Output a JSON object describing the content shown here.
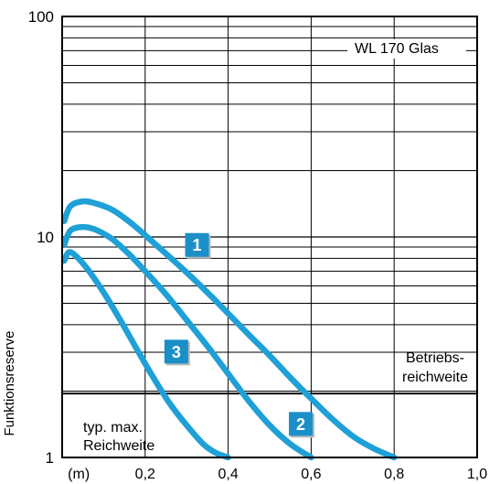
{
  "chart_data": {
    "type": "line",
    "title": "WL 170 Glas",
    "ylabel": "Funktionsreserve",
    "x_unit_label": "(m)",
    "x_tick_labels": [
      "0,2",
      "0,4",
      "0,6",
      "0,8",
      "1,0"
    ],
    "x_ticks": [
      0.2,
      0.4,
      0.6,
      0.8,
      1.0
    ],
    "y_tick_labels": [
      "1",
      "10",
      "100"
    ],
    "y_ticks": [
      1,
      10,
      100
    ],
    "xlim": [
      0,
      1.0
    ],
    "ylim": [
      1,
      100
    ],
    "y_scale": "log",
    "grid": true,
    "reference_line": {
      "y": 1.95,
      "label": "Betriebs-\nreichweite"
    },
    "annotation_bottom": "typ. max.\nReichweite",
    "series_color": "#1fa0d6",
    "badge_color": "#1b8fc7",
    "series": [
      {
        "name": "1",
        "x": [
          0.005,
          0.02,
          0.05,
          0.08,
          0.12,
          0.16,
          0.2,
          0.25,
          0.3,
          0.35,
          0.4,
          0.45,
          0.5,
          0.55,
          0.6,
          0.65,
          0.7,
          0.75,
          0.8
        ],
        "y": [
          11.8,
          13.8,
          14.5,
          14.2,
          13.3,
          11.8,
          10.2,
          8.4,
          6.9,
          5.6,
          4.5,
          3.6,
          2.9,
          2.3,
          1.85,
          1.5,
          1.25,
          1.1,
          1.0
        ]
      },
      {
        "name": "2",
        "x": [
          0.005,
          0.02,
          0.05,
          0.08,
          0.12,
          0.16,
          0.2,
          0.25,
          0.3,
          0.35,
          0.4,
          0.45,
          0.5,
          0.55,
          0.6
        ],
        "y": [
          9.2,
          10.7,
          11.1,
          10.8,
          9.8,
          8.4,
          7.0,
          5.5,
          4.2,
          3.2,
          2.4,
          1.8,
          1.4,
          1.15,
          1.0
        ]
      },
      {
        "name": "3",
        "x": [
          0.005,
          0.015,
          0.03,
          0.06,
          0.1,
          0.14,
          0.18,
          0.22,
          0.26,
          0.3,
          0.34,
          0.37,
          0.4
        ],
        "y": [
          7.8,
          8.5,
          8.3,
          7.2,
          5.6,
          4.2,
          3.1,
          2.3,
          1.75,
          1.4,
          1.15,
          1.05,
          1.0
        ]
      }
    ],
    "badges": [
      {
        "text": "1",
        "x": 0.325,
        "y": 9.2
      },
      {
        "text": "2",
        "x": 0.575,
        "y": 1.42
      },
      {
        "text": "3",
        "x": 0.275,
        "y": 3.02
      }
    ]
  }
}
